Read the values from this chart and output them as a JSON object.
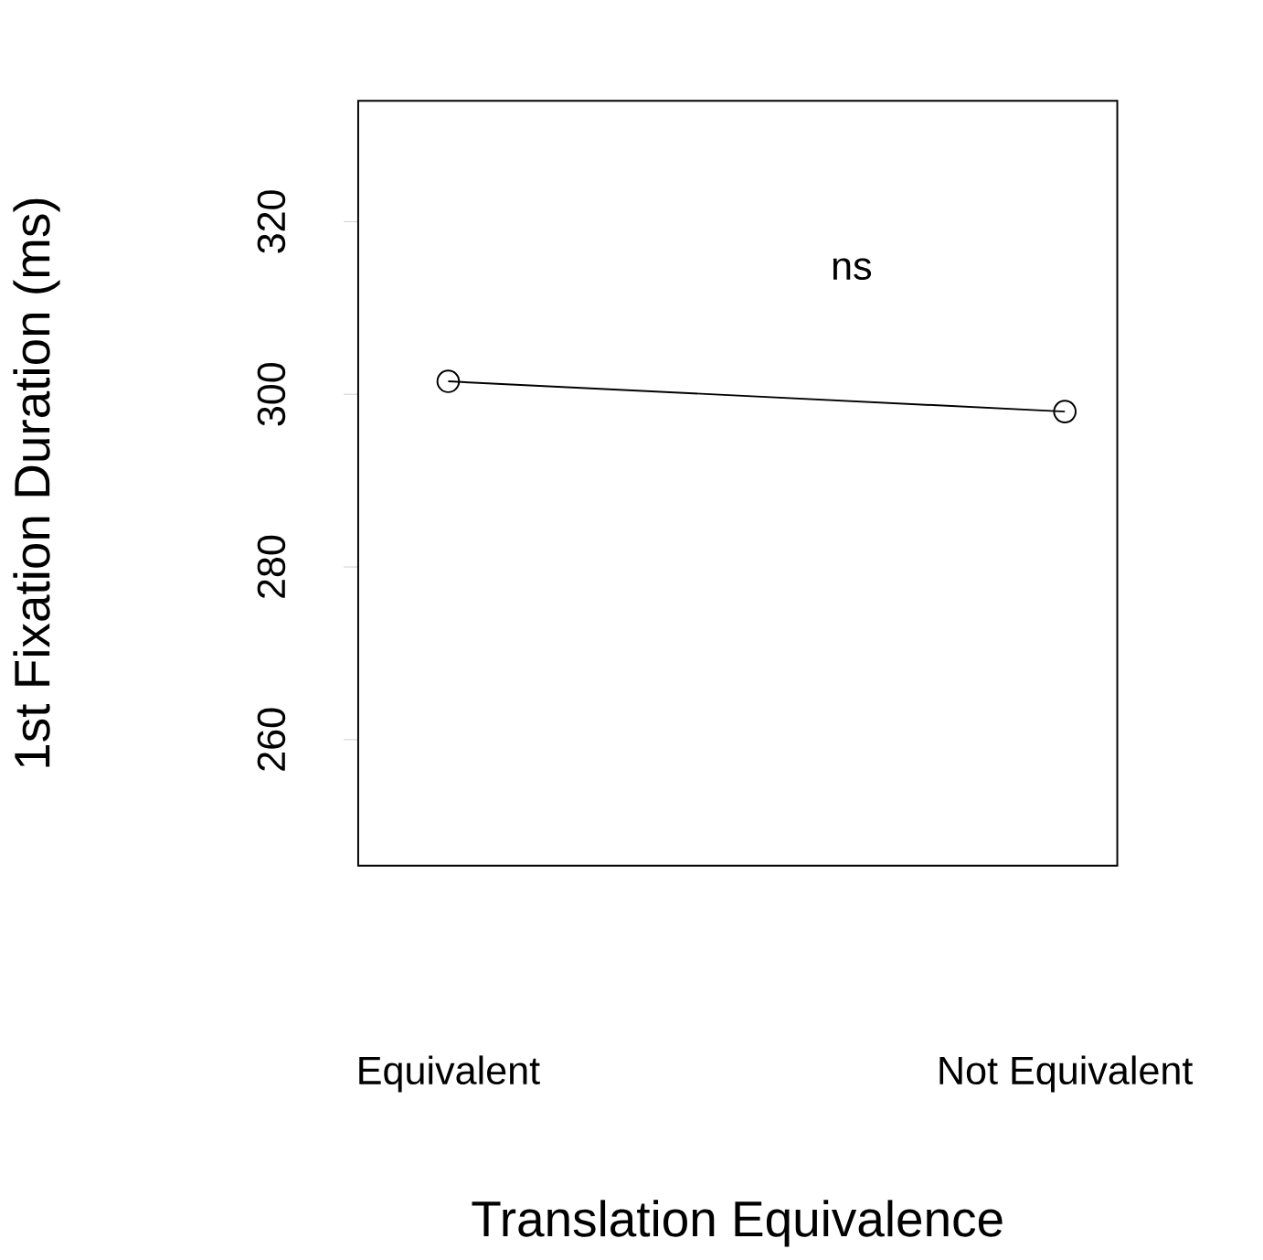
{
  "chart_data": {
    "type": "line",
    "xlabel": "Translation Equivalence",
    "ylabel": "1st Fixation Duration (ms)",
    "categories": [
      "Equivalent",
      "Not Equivalent"
    ],
    "values": [
      301.5,
      298
    ],
    "color": "#000000",
    "ylim": [
      245.4,
      334
    ],
    "yticks": [
      260,
      280,
      300,
      320
    ],
    "marker": "circle",
    "line_style": "solid",
    "grid": false,
    "annotations": [
      "ns"
    ]
  }
}
